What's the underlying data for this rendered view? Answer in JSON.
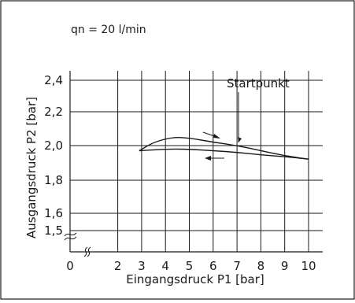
{
  "chart_data": {
    "type": "line",
    "condition_label": "qn = 20 l/min",
    "title": "",
    "xlabel": "Eingangsdruck P1 [bar]",
    "ylabel": "Ausgangsdruck P2 [bar]",
    "xlim": [
      0,
      10
    ],
    "ylim": [
      1.45,
      2.45
    ],
    "x_ticks": [
      {
        "value": 0,
        "label": "0"
      },
      {
        "value": 2,
        "label": "2"
      },
      {
        "value": 3,
        "label": "3"
      },
      {
        "value": 4,
        "label": "4"
      },
      {
        "value": 5,
        "label": "5"
      },
      {
        "value": 6,
        "label": "6"
      },
      {
        "value": 7,
        "label": "7"
      },
      {
        "value": 8,
        "label": "8"
      },
      {
        "value": 9,
        "label": "9"
      },
      {
        "value": 10,
        "label": "10"
      }
    ],
    "y_ticks": [
      {
        "value": 1.5,
        "label": "1,5"
      },
      {
        "value": 1.6,
        "label": "1,6"
      },
      {
        "value": 1.8,
        "label": "1,8"
      },
      {
        "value": 2.0,
        "label": "2,0"
      },
      {
        "value": 2.2,
        "label": "2,2"
      },
      {
        "value": 2.4,
        "label": "2,4"
      }
    ],
    "x_gridlines": [
      2,
      3,
      4,
      5,
      6,
      7,
      8,
      9,
      10
    ],
    "y_gridlines": [
      1.5,
      1.6,
      1.8,
      2.0,
      2.2,
      2.4
    ],
    "grid": true,
    "axis_break": true,
    "series": [
      {
        "direction": "increasing P1",
        "color": "#1a1a1a",
        "points": [
          [
            2.9,
            1.97
          ],
          [
            3.5,
            2.02
          ],
          [
            4.3,
            2.05
          ],
          [
            5.0,
            2.045
          ],
          [
            6.0,
            2.02
          ],
          [
            7.0,
            2.0
          ],
          [
            8.0,
            1.97
          ],
          [
            9.0,
            1.94
          ],
          [
            10.0,
            1.92
          ]
        ]
      },
      {
        "direction": "decreasing P1",
        "color": "#1a1a1a",
        "points": [
          [
            10.0,
            1.92
          ],
          [
            9.0,
            1.935
          ],
          [
            8.0,
            1.945
          ],
          [
            7.0,
            1.96
          ],
          [
            6.0,
            1.97
          ],
          [
            5.0,
            1.978
          ],
          [
            4.3,
            1.98
          ],
          [
            3.5,
            1.975
          ],
          [
            2.9,
            1.97
          ]
        ]
      }
    ],
    "annotations": [
      {
        "text": "Startpunkt",
        "x": 7.0,
        "y": 2.0
      }
    ]
  }
}
